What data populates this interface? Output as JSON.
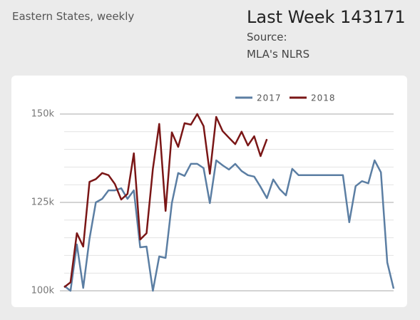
{
  "header": {
    "title": "Eastern States, weekly",
    "last_week": {
      "label": "Last Week",
      "value": 143171
    },
    "source_label": "Source:",
    "source": "MLA's NLRS"
  },
  "chart_data": {
    "type": "line",
    "categories": [
      null,
      null,
      null,
      null,
      null,
      null,
      null,
      null,
      null,
      null,
      null,
      null,
      null,
      null,
      null,
      null,
      null,
      null,
      null,
      null,
      null,
      null,
      null,
      null,
      null,
      null,
      null,
      null,
      null,
      null,
      null,
      null,
      null,
      null,
      null,
      null,
      null,
      null,
      null,
      null,
      null,
      null,
      null,
      null,
      null,
      null,
      null,
      null,
      null,
      null,
      null,
      null,
      null
    ],
    "series": [
      {
        "name": "2017",
        "color": "#5b7ea3",
        "values": [
          101400,
          100000,
          113100,
          100800,
          114700,
          125000,
          126000,
          128400,
          128400,
          129000,
          126000,
          128400,
          112300,
          112500,
          100000,
          109700,
          109300,
          124800,
          133300,
          132500,
          135900,
          135900,
          134700,
          124800,
          136900,
          135500,
          134300,
          135900,
          133900,
          132700,
          132300,
          129400,
          126200,
          131500,
          128800,
          127000,
          134500,
          132700,
          132700,
          132700,
          132700,
          132700,
          132700,
          132700,
          132700,
          119400,
          129600,
          131000,
          130400,
          136900,
          133500,
          108000,
          100600
        ]
      },
      {
        "name": "2018",
        "color": "#7a1616",
        "values": [
          101000,
          102400,
          116300,
          112500,
          130800,
          131600,
          133300,
          132700,
          130200,
          125800,
          127400,
          138900,
          114500,
          116300,
          134500,
          147200,
          122600,
          144800,
          140700,
          147400,
          147000,
          150000,
          146600,
          133100,
          149200,
          145200,
          143300,
          141500,
          145000,
          141100,
          143700,
          138100,
          142900,
          null,
          null,
          null,
          null,
          null,
          null,
          null,
          null,
          null,
          null,
          null,
          null,
          null,
          null,
          null,
          null,
          null,
          null,
          null,
          null
        ]
      }
    ],
    "ylim": [
      100000,
      150000
    ],
    "yticks": [
      {
        "value": 100000,
        "label": "100k"
      },
      {
        "value": 125000,
        "label": "125k"
      },
      {
        "value": 150000,
        "label": "150k"
      }
    ],
    "minor_yticks": [
      105000,
      110000,
      115000,
      120000,
      130000,
      135000,
      140000,
      145000
    ],
    "grid": true,
    "legend": "top"
  }
}
